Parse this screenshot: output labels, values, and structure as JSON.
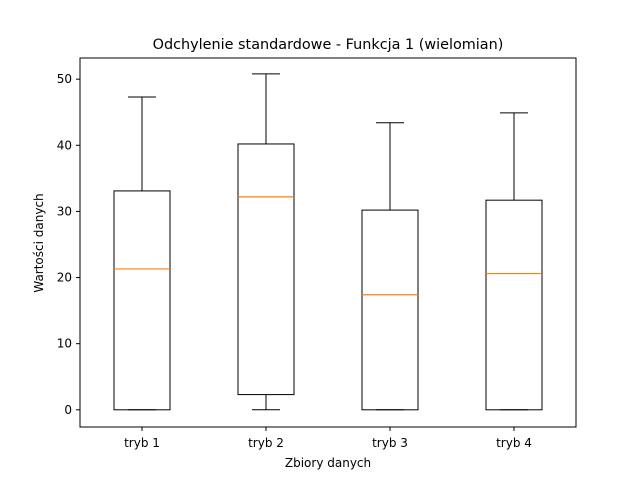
{
  "colors": {
    "box": "#000000",
    "median": "#ff7f0e",
    "background": "#ffffff"
  },
  "chart_data": {
    "type": "boxplot",
    "title": "Odchylenie standardowe - Funkcja 1 (wielomian)",
    "xlabel": "Zbiory danych",
    "ylabel": "Wartości danych",
    "categories": [
      "tryb 1",
      "tryb 2",
      "tryb 3",
      "tryb 4"
    ],
    "boxes": [
      {
        "label": "tryb 1",
        "whisker_low": 0.0,
        "q1": 0.0,
        "median": 21.3,
        "q3": 33.1,
        "whisker_high": 47.3
      },
      {
        "label": "tryb 2",
        "whisker_low": 0.0,
        "q1": 2.3,
        "median": 32.2,
        "q3": 40.2,
        "whisker_high": 50.8
      },
      {
        "label": "tryb 3",
        "whisker_low": 0.0,
        "q1": 0.0,
        "median": 17.4,
        "q3": 30.2,
        "whisker_high": 43.4
      },
      {
        "label": "tryb 4",
        "whisker_low": 0.0,
        "q1": 0.0,
        "median": 20.6,
        "q3": 31.7,
        "whisker_high": 44.9
      }
    ],
    "ylim": [
      -2.6,
      53.2
    ],
    "yticks": [
      0,
      10,
      20,
      30,
      40,
      50
    ],
    "ytick_labels": [
      "0",
      "10",
      "20",
      "30",
      "40",
      "50"
    ],
    "grid": false,
    "legend": "none"
  }
}
